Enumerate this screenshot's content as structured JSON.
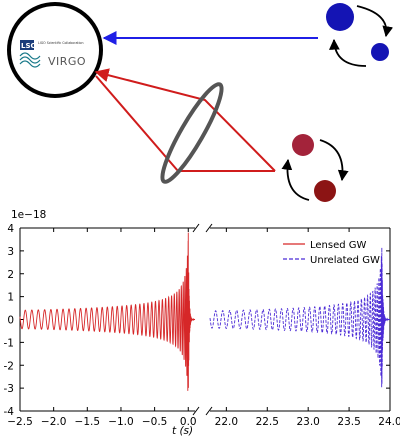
{
  "logo": {
    "lsc_text": "LSC",
    "lsc_subtext": "LIGO Scientific Collaboration",
    "virgo_text": "VIRGO"
  },
  "colors": {
    "blue_path": "#1f1fe6",
    "red_path": "#d01c1c",
    "blue_body": "#1414b4",
    "red_body_upper": "#a3233a",
    "red_body_lower": "#8c1414",
    "lens_ring": "#555555",
    "lensed_series": "#d62728",
    "unrelated_series": "#4b2bd6"
  },
  "chart_data": {
    "type": "line",
    "y_exponent_label": "1e−18",
    "xlabel": "t (s)",
    "ylim": [
      -4,
      4
    ],
    "yticks": [
      -4,
      -3,
      -2,
      -1,
      0,
      1,
      2,
      3,
      4
    ],
    "panels": [
      {
        "name": "left",
        "xlim": [
          -2.5,
          0.1
        ],
        "xticks": [
          -2.5,
          -2.0,
          -1.5,
          -1.0,
          -0.5,
          0.0
        ],
        "xtick_labels": [
          "−2.5",
          "−2.0",
          "−1.5",
          "−1.0",
          "−0.5",
          "0.0"
        ]
      },
      {
        "name": "right",
        "xlim": [
          21.8,
          24.0
        ],
        "xticks": [
          22.0,
          22.5,
          23.0,
          23.5,
          24.0
        ],
        "xtick_labels": [
          "22.0",
          "22.5",
          "23.0",
          "23.5",
          "24.0"
        ]
      }
    ],
    "series": [
      {
        "name": "Lensed GW",
        "style": "solid",
        "merger_time": 0.0,
        "peak_amplitude": 3.8,
        "panel": "left"
      },
      {
        "name": "Unrelated GW",
        "style": "dashed",
        "merger_time": 23.9,
        "peak_amplitude": 3.3,
        "panel": "right"
      }
    ],
    "legend": "top-right"
  }
}
